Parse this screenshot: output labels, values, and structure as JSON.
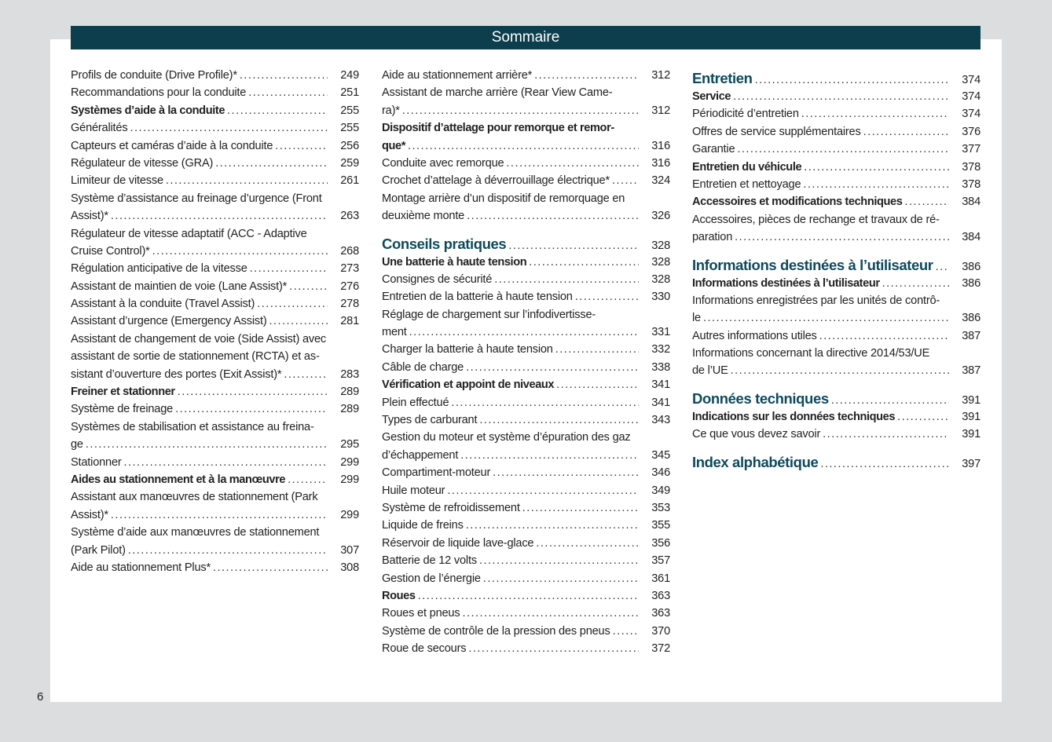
{
  "header": {
    "title": "Sommaire"
  },
  "page_number": "6",
  "columns": [
    [
      {
        "lines": [
          "Profils de conduite (Drive Profile)*"
        ],
        "p": "249"
      },
      {
        "lines": [
          "Recommandations pour la conduite"
        ],
        "p": "251"
      },
      {
        "lines": [
          "Systèmes d’aide à la conduite"
        ],
        "p": "255",
        "s": "b"
      },
      {
        "lines": [
          "Généralités"
        ],
        "p": "255"
      },
      {
        "lines": [
          "Capteurs et caméras d’aide à la conduite"
        ],
        "p": "256"
      },
      {
        "lines": [
          "Régulateur de vitesse (GRA)"
        ],
        "p": "259"
      },
      {
        "lines": [
          "Limiteur de vitesse"
        ],
        "p": "261"
      },
      {
        "lines": [
          "Système d’assistance au freinage d’urgence (Front",
          "Assist)*"
        ],
        "p": "263"
      },
      {
        "lines": [
          "Régulateur de vitesse adaptatif (ACC - Adaptive",
          "Cruise Control)*"
        ],
        "p": "268"
      },
      {
        "lines": [
          "Régulation anticipative de la vitesse"
        ],
        "p": "273"
      },
      {
        "lines": [
          "Assistant de maintien de voie (Lane Assist)*"
        ],
        "p": "276"
      },
      {
        "lines": [
          "Assistant à la conduite (Travel Assist)"
        ],
        "p": "278"
      },
      {
        "lines": [
          "Assistant d’urgence (Emergency Assist)"
        ],
        "p": "281"
      },
      {
        "lines": [
          "Assistant de changement de voie (Side Assist) avec",
          "assistant de sortie de stationnement (RCTA) et as-",
          "sistant d’ouverture des portes (Exit Assist)*"
        ],
        "p": "283"
      },
      {
        "lines": [
          "Freiner et stationner"
        ],
        "p": "289",
        "s": "b"
      },
      {
        "lines": [
          "Système de freinage"
        ],
        "p": "289"
      },
      {
        "lines": [
          "Systèmes de stabilisation et assistance au freina-",
          "ge"
        ],
        "p": "295"
      },
      {
        "lines": [
          "Stationner"
        ],
        "p": "299"
      },
      {
        "lines": [
          "Aides au stationnement et à la manœuvre"
        ],
        "p": "299",
        "s": "b"
      },
      {
        "lines": [
          "Assistant aux manœuvres de stationnement (Park",
          "Assist)*"
        ],
        "p": "299"
      },
      {
        "lines": [
          "Système d’aide aux manœuvres de stationnement",
          "(Park Pilot)"
        ],
        "p": "307"
      },
      {
        "lines": [
          "Aide au stationnement Plus*"
        ],
        "p": "308"
      }
    ],
    [
      {
        "lines": [
          "Aide au stationnement arrière*"
        ],
        "p": "312"
      },
      {
        "lines": [
          "Assistant de marche arrière (Rear View Came-",
          "ra)*"
        ],
        "p": "312"
      },
      {
        "lines": [
          "Dispositif d’attelage pour remorque et remor-",
          "que*"
        ],
        "p": "316",
        "s": "b"
      },
      {
        "lines": [
          "Conduite avec remorque"
        ],
        "p": "316"
      },
      {
        "lines": [
          "Crochet d’attelage à déverrouillage électrique*"
        ],
        "p": "324"
      },
      {
        "lines": [
          "Montage arrière d’un dispositif de remorquage en",
          "deuxième monte"
        ],
        "p": "326"
      },
      {
        "lines": [
          "Conseils pratiques"
        ],
        "p": "328",
        "s": "h"
      },
      {
        "lines": [
          "Une batterie à haute tension"
        ],
        "p": "328",
        "s": "b"
      },
      {
        "lines": [
          "Consignes de sécurité"
        ],
        "p": "328"
      },
      {
        "lines": [
          "Entretien de la batterie à haute tension"
        ],
        "p": "330"
      },
      {
        "lines": [
          "Réglage de chargement sur l’infodivertisse-",
          "ment"
        ],
        "p": "331"
      },
      {
        "lines": [
          "Charger la batterie à haute tension"
        ],
        "p": "332"
      },
      {
        "lines": [
          "Câble de charge"
        ],
        "p": "338"
      },
      {
        "lines": [
          "Vérification et appoint de niveaux"
        ],
        "p": "341",
        "s": "b"
      },
      {
        "lines": [
          "Plein effectué"
        ],
        "p": "341"
      },
      {
        "lines": [
          "Types de carburant"
        ],
        "p": "343"
      },
      {
        "lines": [
          "Gestion du moteur et système d’épuration des gaz",
          "d’échappement"
        ],
        "p": "345"
      },
      {
        "lines": [
          "Compartiment-moteur"
        ],
        "p": "346"
      },
      {
        "lines": [
          "Huile moteur"
        ],
        "p": "349"
      },
      {
        "lines": [
          "Système de refroidissement"
        ],
        "p": "353"
      },
      {
        "lines": [
          "Liquide de freins"
        ],
        "p": "355"
      },
      {
        "lines": [
          "Réservoir de liquide lave-glace"
        ],
        "p": "356"
      },
      {
        "lines": [
          "Batterie de 12 volts"
        ],
        "p": "357"
      },
      {
        "lines": [
          "Gestion de l’énergie"
        ],
        "p": "361"
      },
      {
        "lines": [
          "Roues"
        ],
        "p": "363",
        "s": "b"
      },
      {
        "lines": [
          "Roues et pneus"
        ],
        "p": "363"
      },
      {
        "lines": [
          "Système de contrôle de la pression des pneus"
        ],
        "p": "370"
      },
      {
        "lines": [
          "Roue de secours"
        ],
        "p": "372"
      }
    ],
    [
      {
        "lines": [
          "Entretien"
        ],
        "p": "374",
        "s": "h"
      },
      {
        "lines": [
          "Service"
        ],
        "p": "374",
        "s": "b"
      },
      {
        "lines": [
          "Périodicité d’entretien"
        ],
        "p": "374"
      },
      {
        "lines": [
          "Offres de service supplémentaires"
        ],
        "p": "376"
      },
      {
        "lines": [
          "Garantie"
        ],
        "p": "377"
      },
      {
        "lines": [
          "Entretien du véhicule"
        ],
        "p": "378",
        "s": "b"
      },
      {
        "lines": [
          "Entretien et nettoyage"
        ],
        "p": "378"
      },
      {
        "lines": [
          "Accessoires et modifications techniques"
        ],
        "p": "384",
        "s": "b"
      },
      {
        "lines": [
          "Accessoires, pièces de rechange et travaux de ré-",
          "paration"
        ],
        "p": "384"
      },
      {
        "lines": [
          "Informations destinées à l’utilisateur"
        ],
        "p": "386",
        "s": "h"
      },
      {
        "lines": [
          "Informations destinées à l’utilisateur"
        ],
        "p": "386",
        "s": "b"
      },
      {
        "lines": [
          "Informations enregistrées par les unités de contrô-",
          "le"
        ],
        "p": "386"
      },
      {
        "lines": [
          "Autres informations utiles"
        ],
        "p": "387"
      },
      {
        "lines": [
          "Informations concernant la directive 2014/53/UE",
          "de l’UE"
        ],
        "p": "387"
      },
      {
        "lines": [
          "Données techniques"
        ],
        "p": "391",
        "s": "h"
      },
      {
        "lines": [
          "Indications sur les données techniques"
        ],
        "p": "391",
        "s": "b"
      },
      {
        "lines": [
          "Ce que vous devez savoir"
        ],
        "p": "391"
      },
      {
        "lines": [
          "Index alphabétique"
        ],
        "p": "397",
        "s": "h"
      }
    ]
  ],
  "colors": {
    "header_bg": "#0c3e4d",
    "heading_text": "#0e4a5c",
    "page_bg": "#dcdddf"
  }
}
